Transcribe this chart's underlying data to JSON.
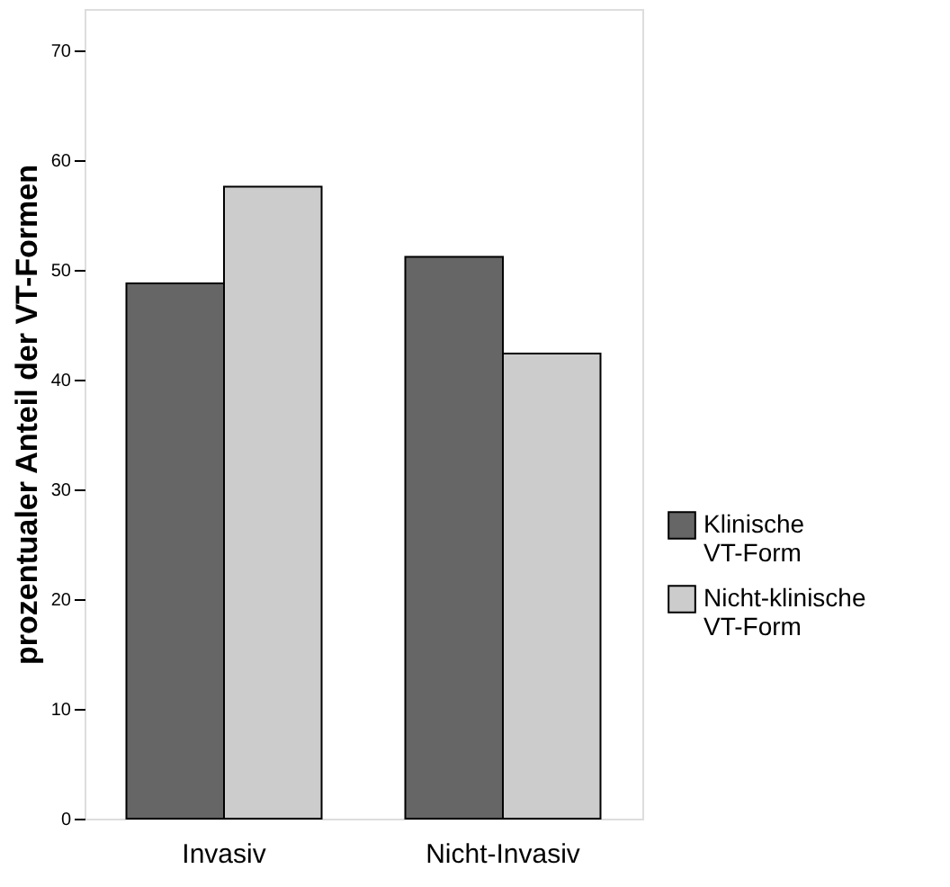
{
  "chart_data": {
    "type": "bar",
    "ylabel": "prozentualer Anteil der VT-Formen",
    "categories": [
      "Invasiv",
      "Nicht-Invasiv"
    ],
    "series": [
      {
        "name": "Klinische VT-Form",
        "color": "#666666",
        "values": [
          48.8,
          51.2
        ]
      },
      {
        "name": "Nicht-klinische VT-Form",
        "color": "#cccccc",
        "values": [
          57.6,
          42.4
        ]
      }
    ],
    "ylim": [
      0,
      73.8
    ],
    "yticks": [
      0,
      10,
      20,
      30,
      40,
      50,
      60,
      70
    ],
    "grid": false,
    "legend": "right"
  }
}
